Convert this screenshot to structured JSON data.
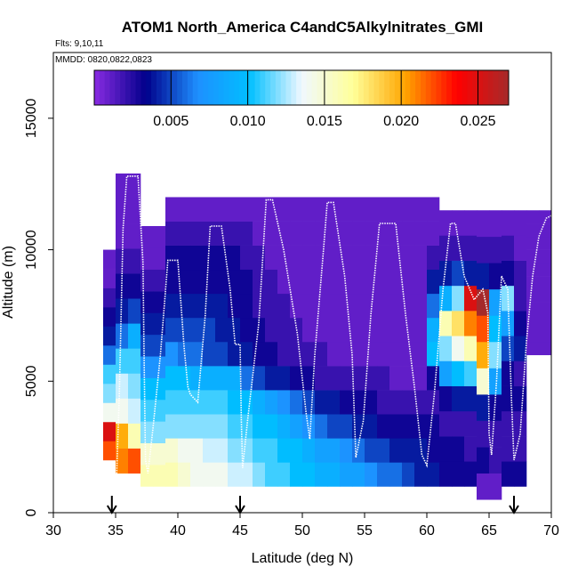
{
  "chart_data": {
    "type": "heatmap",
    "title": "ATOM1 North_America C4andC5Alkylnitrates_GMI",
    "flights_label": "Flts: 9,10,11",
    "dates_label": "MMDD: 0820,0822,0823",
    "xlabel": "Latitude (deg N)",
    "ylabel": "Altitude (m)",
    "xlim": [
      30,
      70
    ],
    "ylim": [
      0,
      17500
    ],
    "x_ticks": [
      "30",
      "35",
      "40",
      "45",
      "50",
      "55",
      "60",
      "65",
      "70"
    ],
    "y_ticks": [
      "0",
      "5000",
      "10000",
      "15000"
    ],
    "grid": false,
    "colorbar": {
      "placement": "top-inside",
      "range": [
        0.0,
        0.027
      ],
      "ticks": [
        "0.005",
        "0.010",
        "0.015",
        "0.020",
        "0.025"
      ],
      "colors": [
        "#8a2be2",
        "#00008b",
        "#1e90ff",
        "#00bfff",
        "#f0f8ff",
        "#ffff99",
        "#ffa500",
        "#ff0000",
        "#a52a2a"
      ]
    },
    "markers": [
      34.7,
      45.0,
      67.0
    ],
    "columns": [
      {
        "x": 34.5,
        "bottom": 2000,
        "top": 10000,
        "values": [
          0.022,
          0.025,
          0.014,
          0.012,
          0.011,
          0.006,
          0.004,
          0.003,
          0.002,
          0.001,
          0.001
        ]
      },
      {
        "x": 35.5,
        "bottom": 1500,
        "top": 12900,
        "values": [
          0.021,
          0.02,
          0.014,
          0.013,
          0.011,
          0.006,
          0.004,
          0.003,
          0.002,
          0.001,
          0.001,
          0.001
        ]
      },
      {
        "x": 36.5,
        "bottom": 1500,
        "top": 12900,
        "values": [
          0.022,
          0.016,
          0.013,
          0.012,
          0.011,
          0.009,
          0.005,
          0.003,
          0.002,
          0.001,
          0.001,
          0.001
        ]
      },
      {
        "x": 37.5,
        "bottom": 1000,
        "top": 10900,
        "values": [
          0.016,
          0.015,
          0.012,
          0.011,
          0.01,
          0.007,
          0.005,
          0.004,
          0.003,
          0.002,
          0.001,
          0.001
        ]
      },
      {
        "x": 38.5,
        "bottom": 1000,
        "top": 10900,
        "values": [
          0.016,
          0.015,
          0.012,
          0.011,
          0.01,
          0.007,
          0.005,
          0.004,
          0.003,
          0.002,
          0.001,
          0.001
        ]
      },
      {
        "x": 39.5,
        "bottom": 1000,
        "top": 12000,
        "values": [
          0.016,
          0.015,
          0.012,
          0.011,
          0.01,
          0.007,
          0.005,
          0.004,
          0.003,
          0.003,
          0.002,
          0.001
        ]
      },
      {
        "x": 40.5,
        "bottom": 1000,
        "top": 12000,
        "values": [
          0.015,
          0.014,
          0.012,
          0.011,
          0.01,
          0.006,
          0.005,
          0.004,
          0.003,
          0.003,
          0.002,
          0.001
        ]
      },
      {
        "x": 41.5,
        "bottom": 1000,
        "top": 12000,
        "values": [
          0.014,
          0.014,
          0.012,
          0.011,
          0.009,
          0.006,
          0.005,
          0.004,
          0.003,
          0.003,
          0.002,
          0.001
        ]
      },
      {
        "x": 42.5,
        "bottom": 1000,
        "top": 12000,
        "values": [
          0.014,
          0.013,
          0.012,
          0.011,
          0.009,
          0.005,
          0.005,
          0.004,
          0.003,
          0.003,
          0.002,
          0.001
        ]
      },
      {
        "x": 43.5,
        "bottom": 1000,
        "top": 12000,
        "values": [
          0.014,
          0.013,
          0.012,
          0.011,
          0.009,
          0.005,
          0.004,
          0.004,
          0.003,
          0.003,
          0.002,
          0.001
        ]
      },
      {
        "x": 44.5,
        "bottom": 1000,
        "top": 12000,
        "values": [
          0.013,
          0.012,
          0.011,
          0.01,
          0.009,
          0.004,
          0.004,
          0.003,
          0.003,
          0.003,
          0.002,
          0.001
        ]
      },
      {
        "x": 45.5,
        "bottom": 1000,
        "top": 12000,
        "values": [
          0.013,
          0.012,
          0.011,
          0.01,
          0.006,
          0.004,
          0.003,
          0.003,
          0.003,
          0.002,
          0.002,
          0.001
        ]
      },
      {
        "x": 46.5,
        "bottom": 1000,
        "top": 12000,
        "values": [
          0.012,
          0.011,
          0.01,
          0.009,
          0.005,
          0.003,
          0.003,
          0.002,
          0.002,
          0.002,
          0.001,
          0.001
        ]
      },
      {
        "x": 47.5,
        "bottom": 1000,
        "top": 12000,
        "values": [
          0.011,
          0.011,
          0.01,
          0.008,
          0.004,
          0.003,
          0.002,
          0.002,
          0.002,
          0.001,
          0.001,
          0.001
        ]
      },
      {
        "x": 48.5,
        "bottom": 1000,
        "top": 12000,
        "values": [
          0.011,
          0.01,
          0.009,
          0.007,
          0.004,
          0.002,
          0.002,
          0.002,
          0.001,
          0.001,
          0.001,
          0.001
        ]
      },
      {
        "x": 49.5,
        "bottom": 1000,
        "top": 12000,
        "values": [
          0.01,
          0.01,
          0.008,
          0.006,
          0.003,
          0.002,
          0.002,
          0.001,
          0.001,
          0.001,
          0.001,
          0.001
        ]
      },
      {
        "x": 50.5,
        "bottom": 1000,
        "top": 12000,
        "values": [
          0.01,
          0.009,
          0.007,
          0.005,
          0.003,
          0.002,
          0.001,
          0.001,
          0.001,
          0.001,
          0.001,
          0.001
        ]
      },
      {
        "x": 51.5,
        "bottom": 1000,
        "top": 12000,
        "values": [
          0.009,
          0.008,
          0.006,
          0.004,
          0.002,
          0.002,
          0.001,
          0.001,
          0.001,
          0.001,
          0.001,
          0.001
        ]
      },
      {
        "x": 52.5,
        "bottom": 1000,
        "top": 12000,
        "values": [
          0.009,
          0.008,
          0.005,
          0.004,
          0.002,
          0.001,
          0.001,
          0.001,
          0.001,
          0.001,
          0.001,
          0.001
        ]
      },
      {
        "x": 53.5,
        "bottom": 1000,
        "top": 12000,
        "values": [
          0.008,
          0.007,
          0.005,
          0.003,
          0.002,
          0.001,
          0.001,
          0.001,
          0.001,
          0.001,
          0.001,
          0.001
        ]
      },
      {
        "x": 54.5,
        "bottom": 1000,
        "top": 12000,
        "values": [
          0.008,
          0.006,
          0.004,
          0.003,
          0.002,
          0.001,
          0.001,
          0.001,
          0.001,
          0.001,
          0.001,
          0.001
        ]
      },
      {
        "x": 55.5,
        "bottom": 1000,
        "top": 12000,
        "values": [
          0.007,
          0.005,
          0.004,
          0.003,
          0.002,
          0.001,
          0.001,
          0.001,
          0.001,
          0.001,
          0.001,
          0.001
        ]
      },
      {
        "x": 56.5,
        "bottom": 1000,
        "top": 12000,
        "values": [
          0.006,
          0.005,
          0.003,
          0.002,
          0.002,
          0.001,
          0.001,
          0.001,
          0.001,
          0.001,
          0.001,
          0.001
        ]
      },
      {
        "x": 57.5,
        "bottom": 1000,
        "top": 12000,
        "values": [
          0.006,
          0.004,
          0.003,
          0.002,
          0.001,
          0.001,
          0.001,
          0.001,
          0.001,
          0.001,
          0.001,
          0.001
        ]
      },
      {
        "x": 58.5,
        "bottom": 1000,
        "top": 12000,
        "values": [
          0.005,
          0.004,
          0.003,
          0.002,
          0.001,
          0.001,
          0.001,
          0.001,
          0.001,
          0.001,
          0.001,
          0.001
        ]
      },
      {
        "x": 59.5,
        "bottom": 1000,
        "top": 12000,
        "values": [
          0.004,
          0.004,
          0.003,
          0.002,
          0.001,
          0.001,
          0.001,
          0.001,
          0.001,
          0.001,
          0.001,
          0.001
        ]
      },
      {
        "x": 60.5,
        "bottom": 1000,
        "top": 12000,
        "values": [
          0.004,
          0.003,
          0.003,
          0.002,
          0.003,
          0.01,
          0.009,
          0.006,
          0.004,
          0.002,
          0.001,
          0.001
        ]
      },
      {
        "x": 61.5,
        "bottom": 1000,
        "top": 11500,
        "values": [
          0.003,
          0.003,
          0.002,
          0.003,
          0.008,
          0.012,
          0.016,
          0.009,
          0.004,
          0.002,
          0.001
        ]
      },
      {
        "x": 62.5,
        "bottom": 1000,
        "top": 11500,
        "values": [
          0.003,
          0.003,
          0.002,
          0.004,
          0.01,
          0.014,
          0.018,
          0.012,
          0.005,
          0.002,
          0.001
        ]
      },
      {
        "x": 63.5,
        "bottom": 1000,
        "top": 11500,
        "values": [
          0.003,
          0.002,
          0.002,
          0.004,
          0.011,
          0.016,
          0.021,
          0.025,
          0.004,
          0.002,
          0.001
        ]
      },
      {
        "x": 64.5,
        "bottom": 500,
        "top": 11500,
        "values": [
          0.001,
          0.003,
          0.002,
          0.004,
          0.015,
          0.02,
          0.022,
          0.027,
          0.004,
          0.002,
          0.001
        ]
      },
      {
        "x": 65.5,
        "bottom": 500,
        "top": 11500,
        "values": [
          0.001,
          0.002,
          0.002,
          0.003,
          0.008,
          0.012,
          0.01,
          0.008,
          0.003,
          0.002,
          0.001
        ]
      },
      {
        "x": 66.5,
        "bottom": 1000,
        "top": 11500,
        "values": [
          0.003,
          0.002,
          0.002,
          0.003,
          0.003,
          0.005,
          0.008,
          0.012,
          0.003,
          0.002,
          0.001
        ]
      },
      {
        "x": 67.5,
        "bottom": 1000,
        "top": 11500,
        "values": [
          0.003,
          0.002,
          0.002,
          0.003,
          0.002,
          0.004,
          0.003,
          0.002,
          0.002,
          0.001,
          0.001
        ]
      },
      {
        "x": 68.5,
        "bottom": 6000,
        "top": 11500,
        "values": [
          0.001,
          0.001,
          0.001,
          0.001,
          0.001,
          0.001,
          0.001,
          0.001,
          0.001,
          0.001,
          0.001
        ]
      },
      {
        "x": 69.5,
        "bottom": 6000,
        "top": 11500,
        "values": [
          0.001,
          0.001,
          0.001,
          0.001,
          0.001,
          0.001,
          0.001,
          0.001,
          0.001,
          0.001,
          0.001
        ]
      }
    ],
    "flight_track": [
      [
        35.0,
        300
      ],
      [
        35.3,
        4500
      ],
      [
        35.6,
        10800
      ],
      [
        35.9,
        12800
      ],
      [
        36.8,
        12800
      ],
      [
        37.2,
        9500
      ],
      [
        37.3,
        5500
      ],
      [
        37.4,
        2000
      ],
      [
        37.6,
        1500
      ],
      [
        38.0,
        3200
      ],
      [
        38.6,
        6000
      ],
      [
        39.2,
        9600
      ],
      [
        40.0,
        9600
      ],
      [
        40.5,
        6300
      ],
      [
        40.8,
        4800
      ],
      [
        41.0,
        4500
      ],
      [
        41.6,
        4200
      ],
      [
        42.2,
        7500
      ],
      [
        42.6,
        10900
      ],
      [
        43.5,
        10900
      ],
      [
        44.2,
        8500
      ],
      [
        44.6,
        6400
      ],
      [
        45.0,
        6400
      ],
      [
        45.1,
        3500
      ],
      [
        45.2,
        1700
      ],
      [
        45.6,
        3500
      ],
      [
        46.5,
        7200
      ],
      [
        47.1,
        11900
      ],
      [
        47.6,
        11900
      ],
      [
        48.5,
        10000
      ],
      [
        49.6,
        6800
      ],
      [
        50.3,
        3800
      ],
      [
        50.6,
        2800
      ],
      [
        51.0,
        6000
      ],
      [
        51.7,
        10000
      ],
      [
        52.0,
        11800
      ],
      [
        52.5,
        11800
      ],
      [
        53.4,
        9000
      ],
      [
        54.0,
        6000
      ],
      [
        54.3,
        2100
      ],
      [
        54.9,
        3500
      ],
      [
        55.5,
        7500
      ],
      [
        56.2,
        11000
      ],
      [
        57.5,
        11000
      ],
      [
        58.3,
        7500
      ],
      [
        59.0,
        4800
      ],
      [
        59.6,
        2200
      ],
      [
        60.0,
        1800
      ],
      [
        60.6,
        4500
      ],
      [
        61.3,
        8500
      ],
      [
        61.9,
        11000
      ],
      [
        62.3,
        11000
      ],
      [
        63.0,
        9000
      ],
      [
        63.8,
        8100
      ],
      [
        64.5,
        8500
      ],
      [
        64.9,
        7600
      ],
      [
        65.0,
        3000
      ],
      [
        65.2,
        2200
      ],
      [
        65.6,
        5000
      ],
      [
        66.0,
        9000
      ],
      [
        66.5,
        8500
      ],
      [
        66.8,
        4300
      ],
      [
        67.0,
        2000
      ],
      [
        67.5,
        3000
      ],
      [
        68.0,
        6500
      ],
      [
        68.5,
        9000
      ],
      [
        69.0,
        10500
      ],
      [
        69.6,
        11200
      ],
      [
        70.0,
        11300
      ]
    ]
  }
}
